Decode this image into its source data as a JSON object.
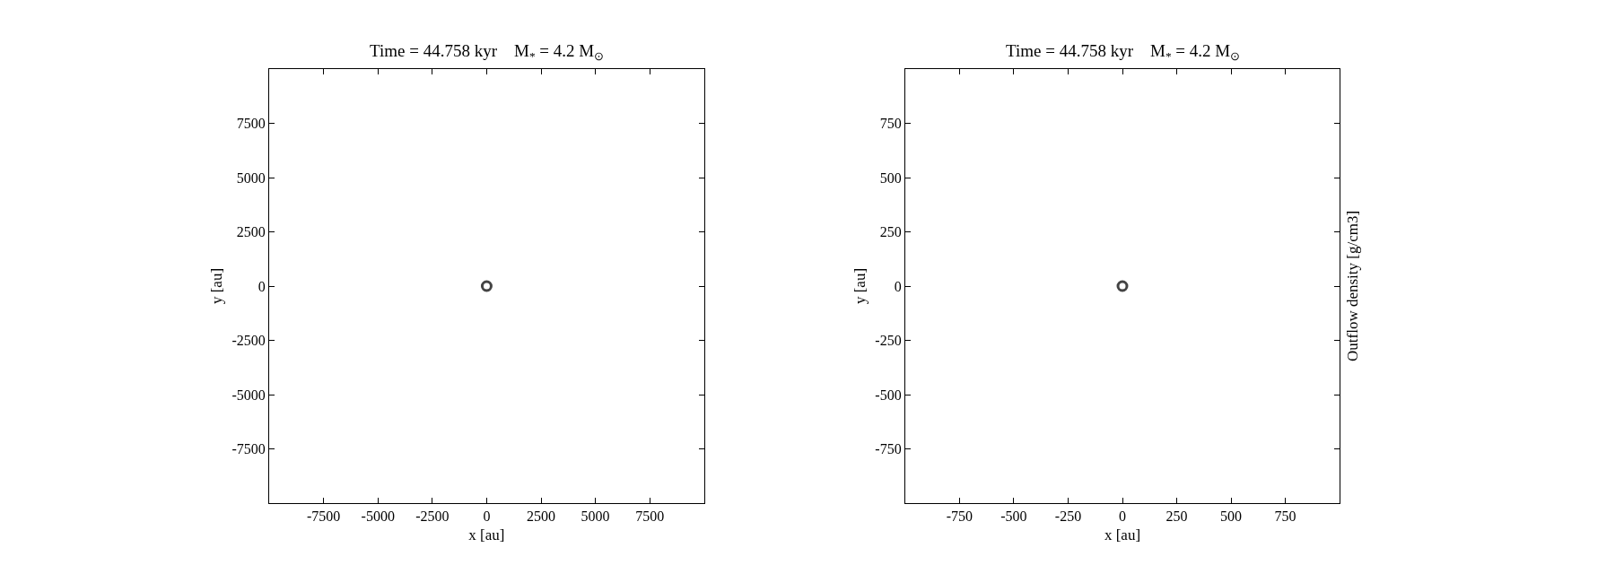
{
  "chart_data": [
    {
      "type": "scatter",
      "title": "Time = 44.758 kyr    M$_{*}$ = 4.2 M$_{⊙}$",
      "xlabel": "x [au]",
      "ylabel": "y [au]",
      "x": [
        0
      ],
      "values": [
        0
      ],
      "color": "#444444",
      "marker": "circle",
      "xlim": [
        -10000,
        10000
      ],
      "ylim": [
        -10000,
        10000
      ],
      "xticks": [
        -7500,
        -5000,
        -2500,
        0,
        2500,
        5000,
        7500
      ],
      "yticks": [
        -7500,
        -5000,
        -2500,
        0,
        2500,
        5000,
        7500
      ]
    },
    {
      "type": "scatter",
      "title": "Time = 44.758 kyr    M$_{*}$ = 4.2 M$_{⊙}$",
      "xlabel": "x [au]",
      "ylabel": "y [au]",
      "clabel": "Outflow density [g/cm3]",
      "x": [
        0
      ],
      "values": [
        0
      ],
      "color": "#444444",
      "marker": "circle",
      "xlim": [
        -1000,
        1000
      ],
      "ylim": [
        -1000,
        1000
      ],
      "xticks": [
        -750,
        -500,
        -250,
        0,
        250,
        500,
        750
      ],
      "yticks": [
        -750,
        -500,
        -250,
        0,
        250,
        500,
        750
      ]
    }
  ]
}
